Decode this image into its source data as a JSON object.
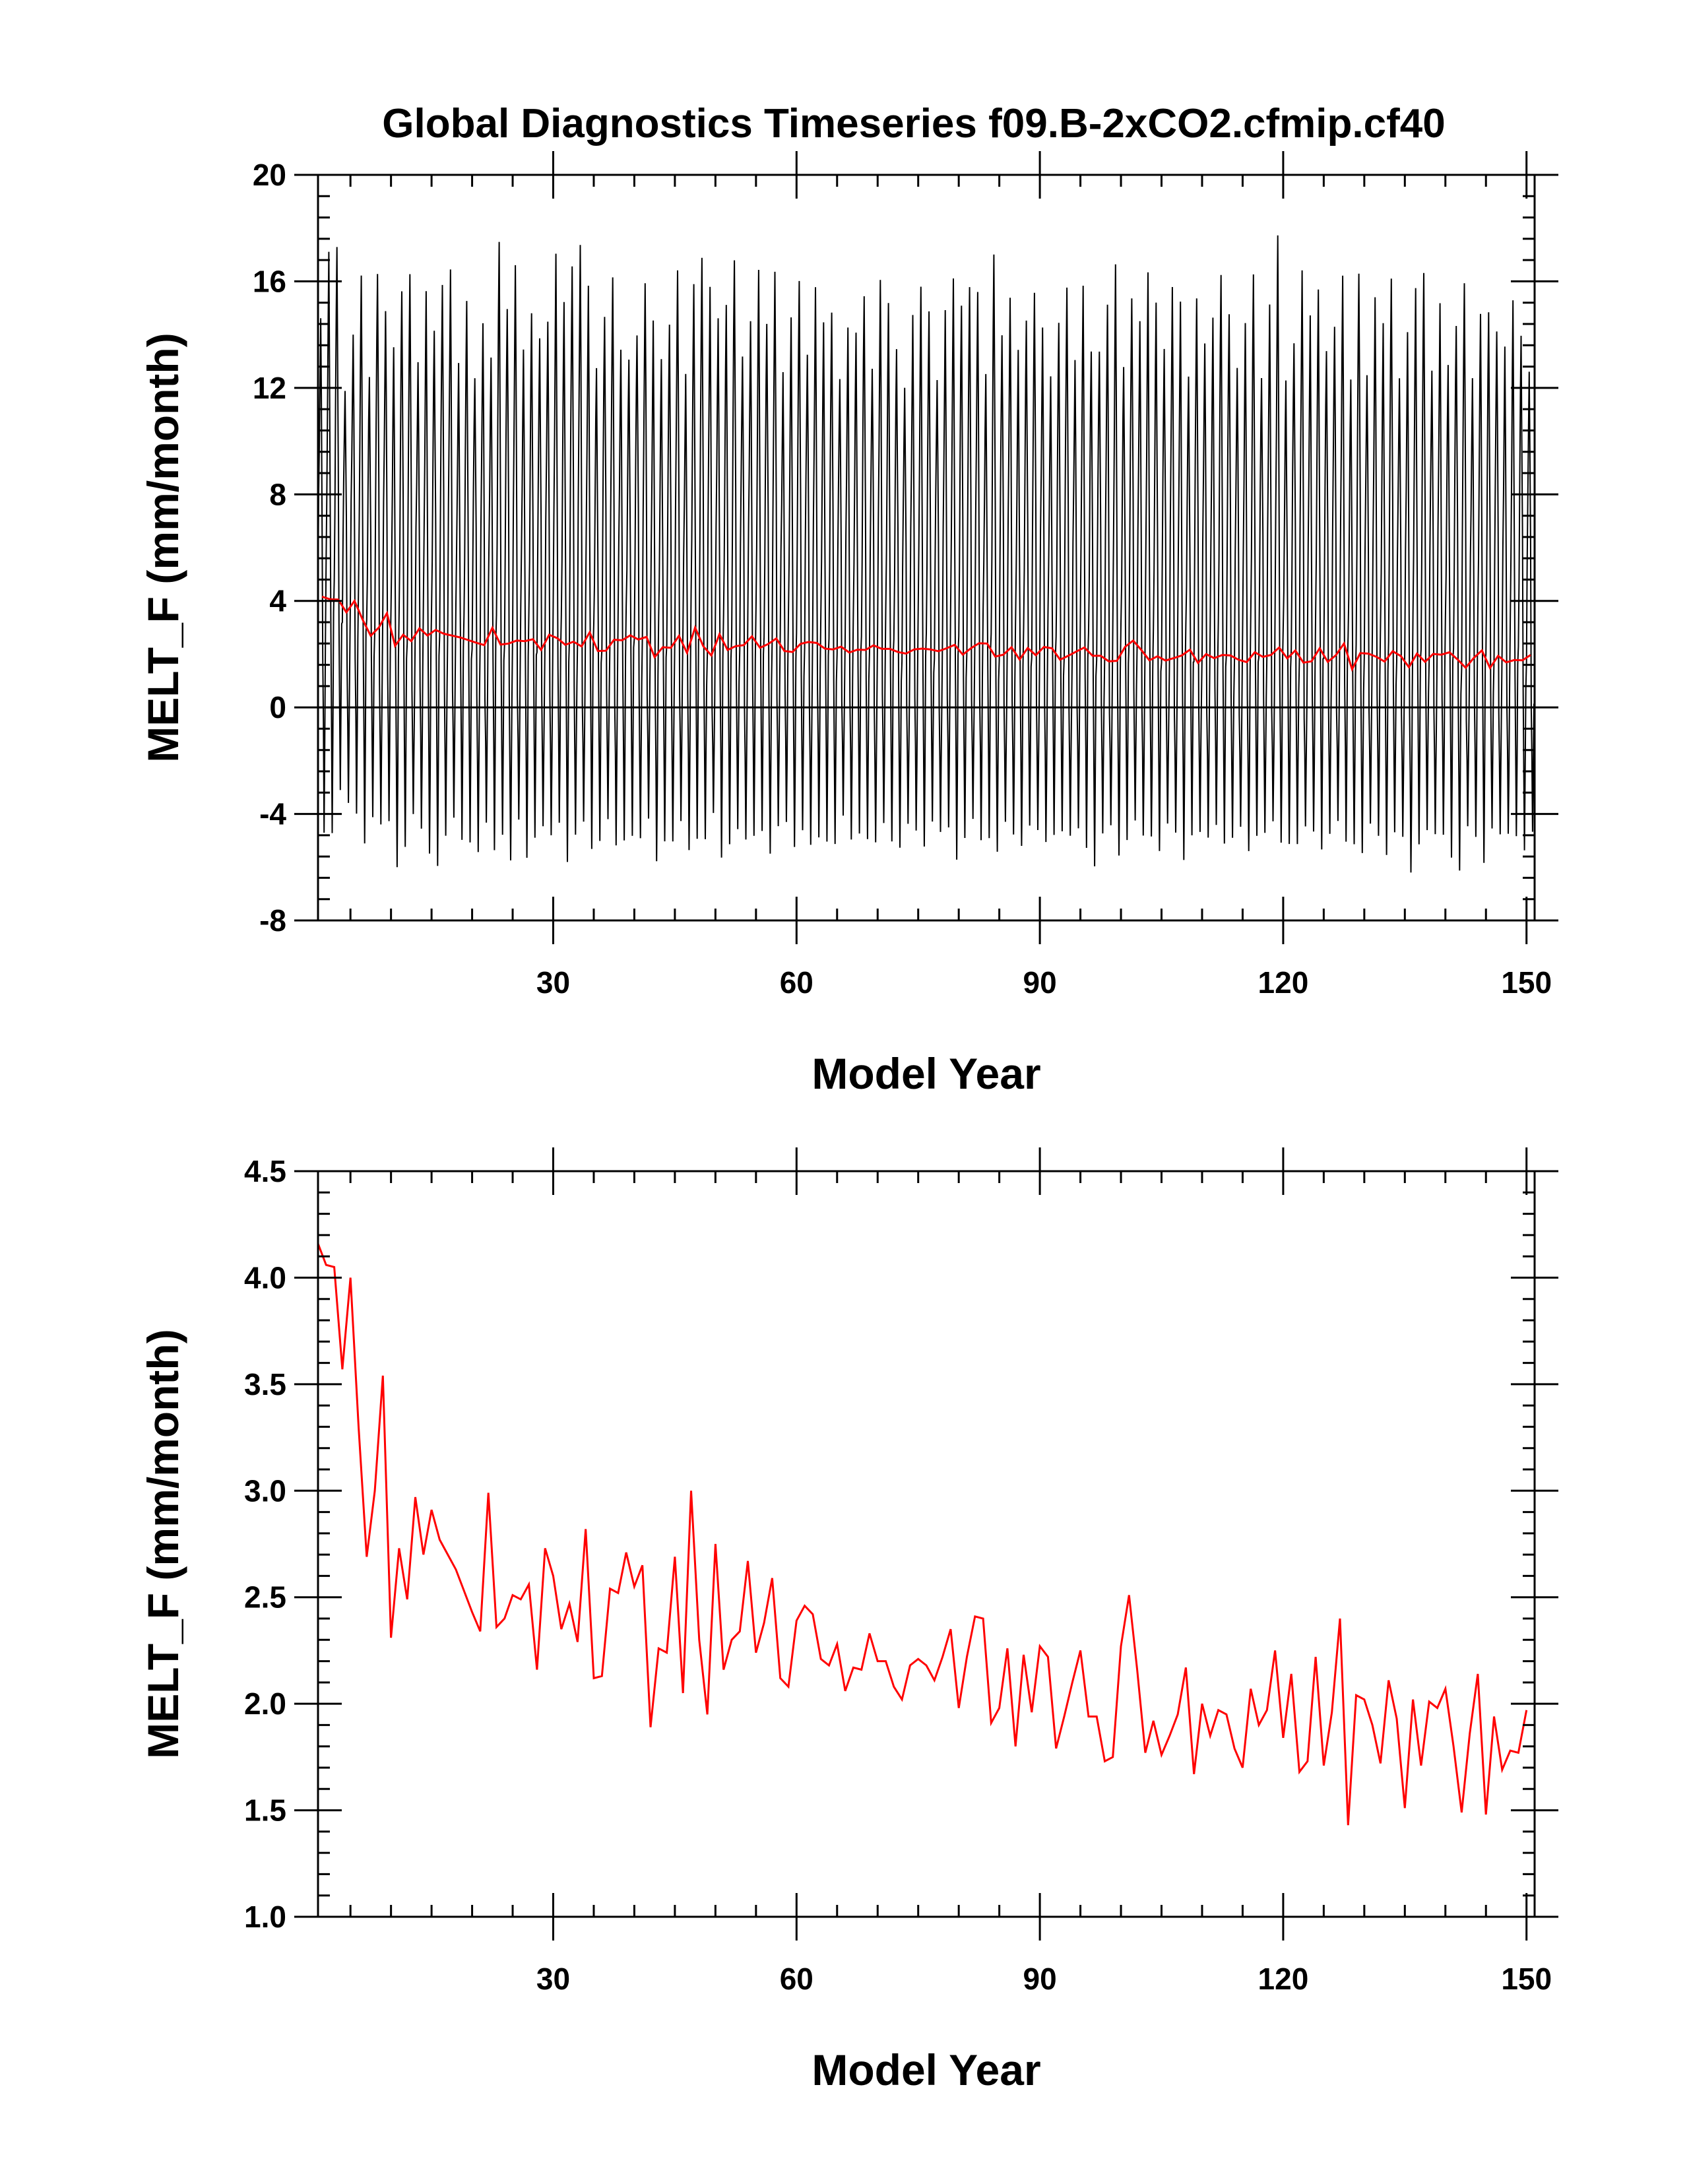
{
  "figure": {
    "title": "Global Diagnostics Timeseries f09.B-2xCO2.cfmip.cf40",
    "series_color_monthly": "#000000",
    "series_color_annual": "#ff0000"
  },
  "chart_data": [
    {
      "type": "line",
      "xlabel": "Model Year",
      "ylabel": "MELT_F (mm/month)",
      "xlim": [
        1,
        151
      ],
      "ylim": [
        -8,
        20
      ],
      "xticks": [
        30,
        60,
        90,
        120,
        150
      ],
      "yticks": [
        -8,
        -4,
        0,
        4,
        8,
        12,
        16,
        20
      ],
      "ytick_labels": [
        "-8",
        "-4",
        "0",
        "4",
        "8",
        "12",
        "16",
        "20"
      ],
      "zero_line": true,
      "grid": false,
      "legend": "none",
      "series": [
        {
          "kind": "monthly",
          "color": "#000000",
          "annual_max_approx": [
            14.5,
            16.9,
            17.4,
            12.1,
            13.9,
            16.0,
            12.5,
            16.5,
            14.8,
            13.3,
            15.7,
            16.5,
            12.9,
            15.4,
            14.2,
            16.1,
            16.4,
            12.7,
            15.3,
            12.6,
            14.4,
            12.9,
            17.5,
            15.2,
            16.6,
            13.2,
            14.8,
            14.1,
            14.5,
            16.8,
            15.2,
            16.8,
            17.4,
            15.6,
            12.7,
            14.9,
            16.2,
            13.2,
            13.0,
            14.2,
            16.0,
            14.3,
            13.0,
            14.6,
            16.5,
            12.3,
            15.8,
            17.1,
            15.9,
            14.4,
            15.0,
            17.0,
            13.3,
            14.3,
            16.3,
            14.6,
            16.5,
            12.4,
            14.5,
            16.2,
            13.4,
            15.6,
            14.3,
            15.0,
            12.5,
            14.1,
            13.9,
            15.6,
            12.9,
            15.9,
            15.0,
            13.6,
            12.2,
            14.6,
            15.6,
            15.0,
            12.5,
            14.8,
            15.9,
            15.2,
            16.0,
            15.5,
            12.3,
            17.1,
            14.2,
            15.3,
            13.2,
            14.6,
            15.8,
            14.2,
            12.2,
            14.5,
            16.0,
            13.0,
            15.6,
            13.4,
            13.6,
            15.1,
            16.4,
            12.8,
            15.6,
            14.5,
            16.1,
            15.2,
            13.7,
            15.8,
            15.0,
            12.4,
            15.6,
            13.7,
            14.4,
            16.2,
            15.0,
            12.8,
            14.2,
            16.2,
            12.6,
            15.2,
            17.5,
            12.2,
            13.9,
            16.5,
            14.5,
            15.6,
            13.6,
            14.4,
            16.0,
            12.2,
            16.5,
            12.6,
            15.2,
            14.3,
            16.3,
            12.5,
            13.9,
            15.6,
            16.5,
            12.8,
            15.0,
            12.7,
            14.5,
            16.1,
            12.2,
            14.6,
            15.0,
            14.3,
            13.4,
            15.1,
            14.1,
            12.8,
            15.3
          ],
          "annual_min_approx": [
            -4.8,
            -4.5,
            -3.0,
            -3.8,
            -4.1,
            -4.9,
            -4.0,
            -4.6,
            -4.4,
            -5.8,
            -5.1,
            -4.2,
            -4.7,
            -5.3,
            -5.8,
            -5.0,
            -4.3,
            -4.8,
            -4.9,
            -5.6,
            -4.5,
            -5.2,
            -4.6,
            -5.9,
            -4.4,
            -5.5,
            -4.7,
            -4.6,
            -5.0,
            -4.2,
            -5.6,
            -4.9,
            -4.5,
            -5.2,
            -4.8,
            -4.3,
            -5.4,
            -4.9,
            -4.6,
            -5.0,
            -4.4,
            -5.7,
            -4.8,
            -5.1,
            -4.5,
            -5.3,
            -4.7,
            -5.0,
            -4.2,
            -5.6,
            -4.9,
            -4.6,
            -5.2,
            -4.8,
            -4.4,
            -5.5,
            -4.7,
            -4.3,
            -5.0,
            -4.6,
            -5.4,
            -4.9,
            -4.8,
            -5.1,
            -4.3,
            -5.0,
            -4.5,
            -4.9,
            -5.3,
            -4.4,
            -4.8,
            -5.2,
            -4.6,
            -4.7,
            -5.0,
            -4.2,
            -4.9,
            -4.6,
            -5.5,
            -4.8,
            -4.4,
            -5.1,
            -4.7,
            -5.3,
            -4.5,
            -4.9,
            -5.0,
            -4.3,
            -4.8,
            -5.2,
            -4.6,
            -4.5,
            -5.0,
            -4.7,
            -5.1,
            -5.8,
            -4.9,
            -4.6,
            -5.4,
            -4.8,
            -4.4,
            -5.0,
            -4.7,
            -5.2,
            -4.5,
            -4.9,
            -5.6,
            -4.6,
            -4.8,
            -5.1,
            -4.3,
            -4.9,
            -5.0,
            -4.7,
            -5.3,
            -4.6,
            -4.8,
            -4.5,
            -5.0,
            -4.9,
            -5.2,
            -4.7,
            -4.6,
            -5.1,
            -4.8,
            -4.5,
            -5.0,
            -4.9,
            -5.5,
            -4.6,
            -4.8,
            -5.3,
            -4.7,
            -5.1,
            -6.2,
            -4.9,
            -4.6,
            -5.0,
            -4.8,
            -5.4,
            -6.1,
            -4.7,
            -4.9,
            -5.6,
            -4.5,
            -5.0,
            -4.8,
            -4.6,
            -5.3,
            -4.9,
            -4.7
          ]
        },
        {
          "kind": "annual",
          "color": "#ff0000",
          "values_ref": "annual_mean"
        }
      ]
    },
    {
      "type": "line",
      "xlabel": "Model Year",
      "ylabel": "MELT_F (mm/month)",
      "xlim": [
        1,
        151
      ],
      "ylim": [
        1.0,
        4.5
      ],
      "xticks": [
        30,
        60,
        90,
        120,
        150
      ],
      "yticks": [
        1.0,
        1.5,
        2.0,
        2.5,
        3.0,
        3.5,
        4.0,
        4.5
      ],
      "ytick_labels": [
        "1.0",
        "1.5",
        "2.0",
        "2.5",
        "3.0",
        "3.5",
        "4.0",
        "4.5"
      ],
      "grid": false,
      "legend": "none",
      "series": [
        {
          "kind": "annual",
          "color": "#ff0000",
          "values_ref": "annual_mean"
        }
      ]
    }
  ],
  "annual_mean": {
    "x_start": 1,
    "values": [
      4.16,
      4.06,
      4.05,
      3.57,
      4.0,
      3.3,
      2.69,
      3.0,
      3.54,
      2.31,
      2.73,
      2.49,
      2.97,
      2.7,
      2.91,
      2.77,
      2.7,
      2.63,
      2.53,
      2.43,
      2.34,
      2.99,
      2.36,
      2.4,
      2.51,
      2.49,
      2.56,
      2.16,
      2.73,
      2.6,
      2.35,
      2.47,
      2.29,
      2.82,
      2.12,
      2.13,
      2.54,
      2.52,
      2.71,
      2.55,
      2.65,
      1.89,
      2.26,
      2.24,
      2.69,
      2.05,
      3.0,
      2.3,
      1.95,
      2.75,
      2.16,
      2.3,
      2.34,
      2.67,
      2.24,
      2.38,
      2.59,
      2.12,
      2.08,
      2.39,
      2.46,
      2.42,
      2.21,
      2.18,
      2.28,
      2.06,
      2.17,
      2.16,
      2.33,
      2.2,
      2.2,
      2.08,
      2.02,
      2.18,
      2.21,
      2.18,
      2.11,
      2.22,
      2.35,
      1.98,
      2.22,
      2.41,
      2.4,
      1.91,
      1.98,
      2.26,
      1.8,
      2.23,
      1.96,
      2.27,
      2.22,
      1.79,
      1.94,
      2.1,
      2.25,
      1.94,
      1.94,
      1.73,
      1.75,
      2.27,
      2.51,
      2.16,
      1.77,
      1.92,
      1.76,
      1.85,
      1.95,
      2.17,
      1.67,
      2.0,
      1.85,
      1.97,
      1.95,
      1.79,
      1.7,
      2.07,
      1.9,
      1.97,
      2.25,
      1.84,
      2.14,
      1.68,
      1.73,
      2.22,
      1.71,
      1.96,
      2.4,
      1.43,
      2.04,
      2.02,
      1.9,
      1.72,
      2.11,
      1.93,
      1.51,
      2.02,
      1.71,
      2.01,
      1.98,
      2.07,
      1.8,
      1.49,
      1.86,
      2.14,
      1.48,
      1.94,
      1.69,
      1.78,
      1.77,
      1.97
    ]
  }
}
